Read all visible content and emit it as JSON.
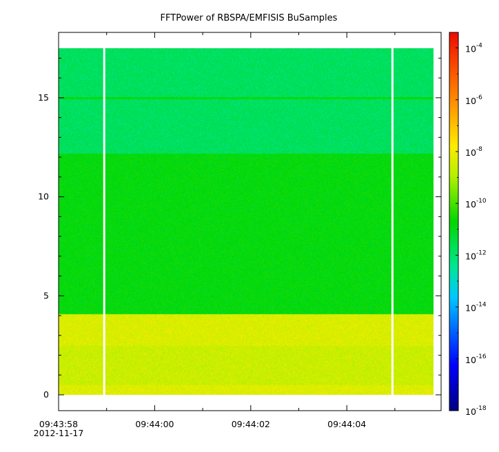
{
  "chart_data": {
    "type": "heatmap",
    "title": "FFTPower of RBSPA/EMFISIS  BuSamples",
    "xlabel": "",
    "ylabel": "",
    "x_axis": {
      "type": "time",
      "start": "09:43:58",
      "end": "09:44:05.8",
      "ticks": [
        {
          "value": 0,
          "label": "09:43:58",
          "sublabel": "2012-11-17"
        },
        {
          "value": 2,
          "label": "09:44:00",
          "sublabel": ""
        },
        {
          "value": 4,
          "label": "09:44:02",
          "sublabel": ""
        },
        {
          "value": 6,
          "label": "09:44:04",
          "sublabel": ""
        }
      ],
      "minor_tick_step_seconds": 1
    },
    "y_axis": {
      "ylim": [
        -0.8,
        18.3
      ],
      "ticks": [
        0,
        5,
        10,
        15
      ],
      "minor_ticks": [
        1,
        2,
        3,
        4,
        6,
        7,
        8,
        9,
        11,
        12,
        13,
        14,
        16,
        17
      ]
    },
    "colorbar": {
      "scale": "log",
      "range": [
        -18,
        -3.4
      ],
      "ticks": [
        {
          "base": "10",
          "exp": "-4",
          "log": -4
        },
        {
          "base": "10",
          "exp": "-6",
          "log": -6
        },
        {
          "base": "10",
          "exp": "-8",
          "log": -8
        },
        {
          "base": "10",
          "exp": "-10",
          "log": -10
        },
        {
          "base": "10",
          "exp": "-12",
          "log": -12
        },
        {
          "base": "10",
          "exp": "-14",
          "log": -14
        },
        {
          "base": "10",
          "exp": "-16",
          "log": -16
        },
        {
          "base": "10",
          "exp": "-18",
          "log": -18
        }
      ]
    },
    "data_extent": {
      "x": [
        0,
        7.8
      ],
      "y": [
        0,
        17.5
      ]
    },
    "data_gaps": [
      {
        "x": 0.95
      },
      {
        "x": 6.95
      }
    ],
    "bands": [
      {
        "y": [
          0,
          4.1
        ],
        "log_power": -8.5
      },
      {
        "y": [
          4.1,
          12.2
        ],
        "log_power": -10.8
      },
      {
        "y": [
          12.2,
          17.5
        ],
        "log_power": -11.8
      }
    ],
    "features": [
      {
        "kind": "line",
        "y": 15.0,
        "log_power": -10.8
      }
    ]
  }
}
